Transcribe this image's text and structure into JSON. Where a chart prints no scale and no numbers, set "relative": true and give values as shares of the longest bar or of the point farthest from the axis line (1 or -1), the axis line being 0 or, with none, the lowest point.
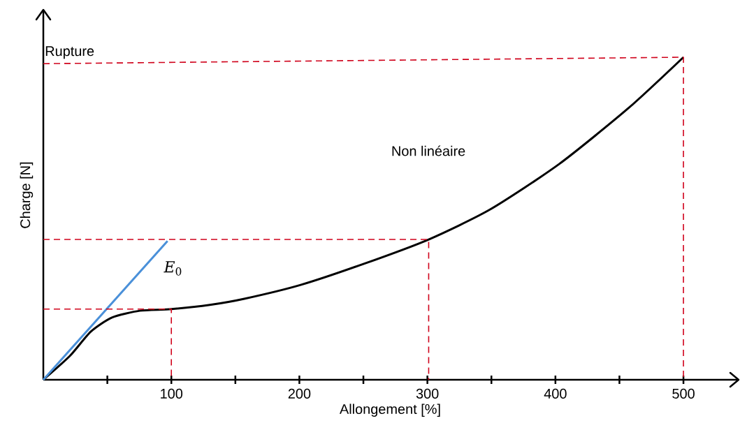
{
  "chart_data": {
    "type": "line",
    "relative": true,
    "xlabel": "Allongement [%]",
    "ylabel": "Charge [N]",
    "xlim": [
      0,
      542
    ],
    "xticks": [
      {
        "value": 50,
        "label": null
      },
      100,
      {
        "value": 150,
        "label": null
      },
      200,
      {
        "value": 250,
        "label": null
      },
      300,
      {
        "value": 350,
        "label": null
      },
      400,
      {
        "value": 450,
        "label": null
      },
      500
    ],
    "line_style": "solid",
    "marker": "none",
    "series": [
      {
        "color": "#000000",
        "x": [
          0,
          20.8,
          37,
          53.6,
          75.4,
          100,
          130,
          157,
          201,
          250,
          301,
          349,
          403,
          457,
          500
        ],
        "values": [
          0,
          0.074,
          0.149,
          0.193,
          0.214,
          0.219,
          0.232,
          0.251,
          0.294,
          0.359,
          0.435,
          0.528,
          0.669,
          0.842,
          1
        ]
      },
      {
        "name": "*E*$_{0}$",
        "color": "#4a90d9",
        "x": [
          0,
          97
        ],
        "values": [
          0,
          0.43
        ]
      },
      {
        "color": "#d0021b",
        "line_style": "dashed",
        "x": [
          0,
          100,
          100
        ],
        "values": [
          0.219,
          0.219,
          0
        ]
      },
      {
        "color": "#d0021b",
        "line_style": "dashed",
        "x": [
          0,
          301,
          301
        ],
        "values": [
          0.435,
          0.435,
          0
        ]
      },
      {
        "color": "#d0021b",
        "line_style": "dashed",
        "x": [
          0,
          500,
          500
        ],
        "values": [
          0.98,
          1,
          0
        ]
      }
    ],
    "annotations": [
      "Rupture",
      "Non linéaire"
    ]
  }
}
